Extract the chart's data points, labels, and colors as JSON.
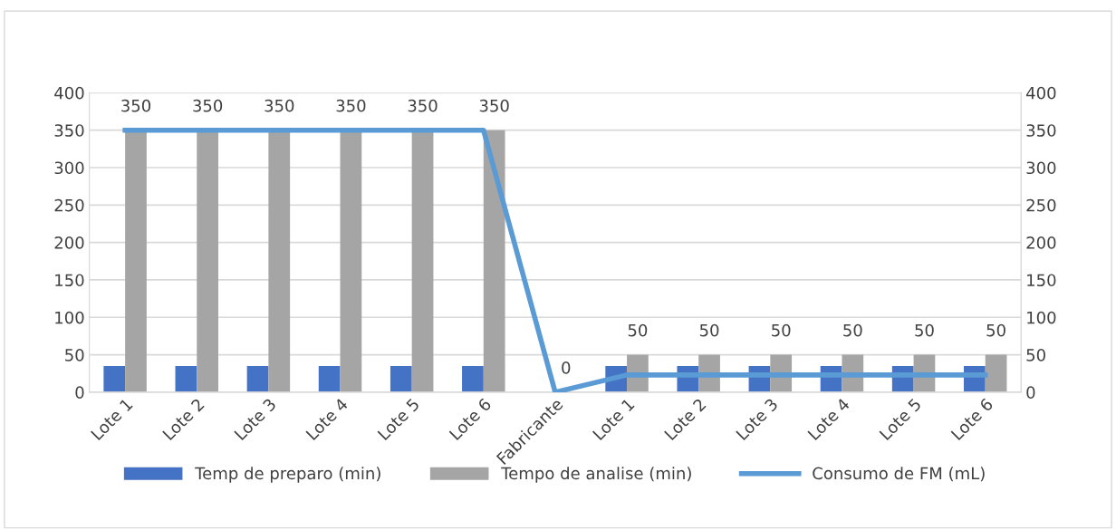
{
  "chart_data": {
    "type": "bar",
    "categories": [
      "Lote 1",
      "Lote 2",
      "Lote 3",
      "Lote 4",
      "Lote 5",
      "Lote 6",
      "Fabricante",
      "Lote 1",
      "Lote 2",
      "Lote 3",
      "Lote 4",
      "Lote 5",
      "Lote 6"
    ],
    "series": [
      {
        "name": "Temp de preparo (min)",
        "color": "#4472c4",
        "values": [
          35,
          35,
          35,
          35,
          35,
          35,
          0,
          35,
          35,
          35,
          35,
          35,
          35
        ]
      },
      {
        "name": "Tempo de analise (min)",
        "color": "#a5a5a5",
        "values": [
          350,
          350,
          350,
          350,
          350,
          350,
          0,
          50,
          50,
          50,
          50,
          50,
          50
        ],
        "value_labels": [
          "350",
          "350",
          "350",
          "350",
          "350",
          "350",
          "0",
          "50",
          "50",
          "50",
          "50",
          "50",
          "50"
        ]
      },
      {
        "name": "Consumo de FM (mL)",
        "type": "line",
        "axis": "y2",
        "color": "#5b9bd5",
        "values": [
          350,
          350,
          350,
          350,
          350,
          350,
          0,
          23,
          23,
          23,
          23,
          23,
          23
        ]
      }
    ],
    "ylim": [
      0,
      400
    ],
    "yticks": [
      0,
      50,
      100,
      150,
      200,
      250,
      300,
      350,
      400
    ],
    "y2lim": [
      0,
      400
    ],
    "y2ticks": [
      0,
      50,
      100,
      150,
      200,
      250,
      300,
      350,
      400
    ],
    "grid": "y",
    "legend": "bottom",
    "marker": "none",
    "line_style": "solid"
  }
}
